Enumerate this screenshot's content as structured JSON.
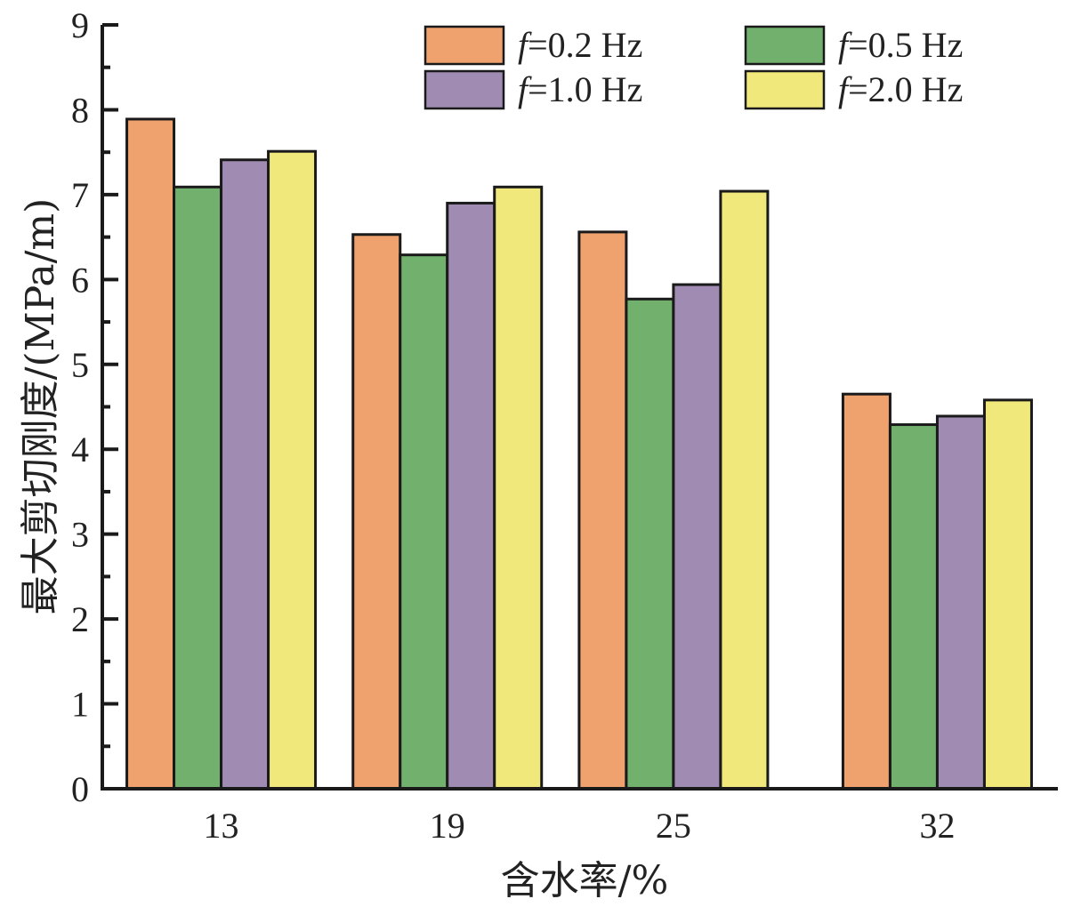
{
  "chart_data": {
    "type": "bar",
    "title": "",
    "xlabel": "含水率/%",
    "ylabel": "最大剪切刚度/(MPa/m)",
    "x": [
      13,
      19,
      25,
      32
    ],
    "categories": [
      "13",
      "19",
      "25",
      "32"
    ],
    "xlim": [
      9.8,
      35.2
    ],
    "ylim": [
      0,
      9
    ],
    "yticks": [
      0,
      1,
      2,
      3,
      4,
      5,
      6,
      7,
      8,
      9
    ],
    "yminor_step": 0.5,
    "grid": false,
    "legend_position": "top-right",
    "legend_columns": 2,
    "series": [
      {
        "name": "f=0.2 Hz",
        "symbol": "f",
        "label_suffix": "=0.2 Hz",
        "color": "#EFA26E",
        "values": [
          7.89,
          6.53,
          6.56,
          4.65
        ]
      },
      {
        "name": "f=0.5 Hz",
        "symbol": "f",
        "label_suffix": "=0.5 Hz",
        "color": "#72B06E",
        "values": [
          7.09,
          6.29,
          5.77,
          4.29
        ]
      },
      {
        "name": "f=1.0 Hz",
        "symbol": "f",
        "label_suffix": "=1.0 Hz",
        "color": "#A08BB3",
        "values": [
          7.41,
          6.9,
          5.94,
          4.39
        ]
      },
      {
        "name": "f=2.0 Hz",
        "symbol": "f",
        "label_suffix": "=2.0 Hz",
        "color": "#F0E87A",
        "values": [
          7.51,
          7.09,
          7.04,
          4.58
        ]
      }
    ]
  }
}
